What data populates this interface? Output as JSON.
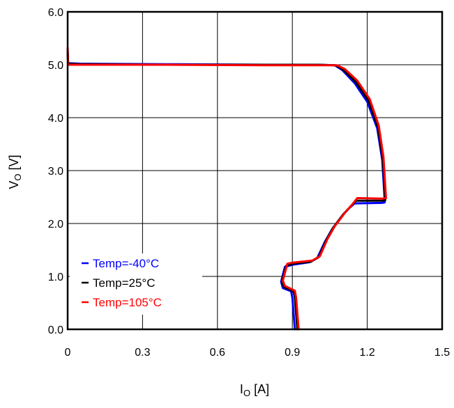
{
  "chart_data": {
    "type": "line",
    "xlabel": {
      "main": "I",
      "sub": "O",
      "unit": " [A]"
    },
    "ylabel": {
      "main": "V",
      "sub": "O",
      "unit": " [V]"
    },
    "xlim": [
      0,
      1.5
    ],
    "ylim": [
      0,
      6
    ],
    "x_ticks": [
      0,
      0.3,
      0.6,
      0.9,
      1.2,
      1.5
    ],
    "x_tick_labels": [
      "0",
      "0.3",
      "0.6",
      "0.9",
      "1.2",
      "1.5"
    ],
    "y_ticks": [
      0,
      1,
      2,
      3,
      4,
      5,
      6
    ],
    "y_tick_labels": [
      "0.0",
      "1.0",
      "2.0",
      "3.0",
      "4.0",
      "5.0",
      "6.0"
    ],
    "grid": true,
    "legend_position": "bottom-left",
    "series": [
      {
        "name": "Temp=-40°C",
        "color": "#0000ff",
        "points": [
          [
            0,
            5.25
          ],
          [
            0.002,
            5.03
          ],
          [
            0.05,
            5.02
          ],
          [
            0.4,
            5.01
          ],
          [
            0.8,
            5.0
          ],
          [
            1.0,
            5.0
          ],
          [
            1.07,
            4.99
          ],
          [
            1.1,
            4.9
          ],
          [
            1.15,
            4.65
          ],
          [
            1.2,
            4.3
          ],
          [
            1.24,
            3.8
          ],
          [
            1.26,
            3.2
          ],
          [
            1.268,
            2.6
          ],
          [
            1.27,
            2.4
          ],
          [
            1.26,
            2.39
          ],
          [
            1.15,
            2.38
          ],
          [
            1.13,
            2.3
          ],
          [
            1.1,
            2.15
          ],
          [
            1.06,
            1.9
          ],
          [
            1.03,
            1.65
          ],
          [
            1.0,
            1.35
          ],
          [
            0.97,
            1.27
          ],
          [
            0.9,
            1.22
          ],
          [
            0.87,
            1.18
          ],
          [
            0.855,
            0.9
          ],
          [
            0.862,
            0.78
          ],
          [
            0.895,
            0.72
          ],
          [
            0.9,
            0.6
          ],
          [
            0.905,
            0.3
          ],
          [
            0.91,
            0.0
          ]
        ]
      },
      {
        "name": "Temp=25°C",
        "color": "#000000",
        "points": [
          [
            0,
            5.28
          ],
          [
            0.002,
            5.02
          ],
          [
            0.05,
            5.01
          ],
          [
            0.4,
            5.0
          ],
          [
            0.8,
            5.0
          ],
          [
            1.0,
            5.0
          ],
          [
            1.075,
            4.99
          ],
          [
            1.105,
            4.9
          ],
          [
            1.155,
            4.67
          ],
          [
            1.205,
            4.32
          ],
          [
            1.243,
            3.82
          ],
          [
            1.262,
            3.22
          ],
          [
            1.27,
            2.62
          ],
          [
            1.272,
            2.44
          ],
          [
            1.26,
            2.43
          ],
          [
            1.155,
            2.43
          ],
          [
            1.135,
            2.33
          ],
          [
            1.105,
            2.18
          ],
          [
            1.065,
            1.93
          ],
          [
            1.035,
            1.68
          ],
          [
            1.005,
            1.36
          ],
          [
            0.975,
            1.28
          ],
          [
            0.9,
            1.24
          ],
          [
            0.875,
            1.2
          ],
          [
            0.858,
            0.91
          ],
          [
            0.866,
            0.8
          ],
          [
            0.905,
            0.72
          ],
          [
            0.91,
            0.6
          ],
          [
            0.915,
            0.3
          ],
          [
            0.92,
            0.0
          ]
        ]
      },
      {
        "name": "Temp=105°C",
        "color": "#ff0000",
        "points": [
          [
            0,
            5.32
          ],
          [
            0.002,
            5.0
          ],
          [
            0.05,
            5.0
          ],
          [
            0.4,
            5.0
          ],
          [
            0.8,
            4.99
          ],
          [
            1.0,
            4.99
          ],
          [
            1.08,
            4.99
          ],
          [
            1.11,
            4.92
          ],
          [
            1.16,
            4.7
          ],
          [
            1.21,
            4.35
          ],
          [
            1.246,
            3.85
          ],
          [
            1.265,
            3.25
          ],
          [
            1.273,
            2.65
          ],
          [
            1.275,
            2.48
          ],
          [
            1.26,
            2.47
          ],
          [
            1.16,
            2.48
          ],
          [
            1.14,
            2.36
          ],
          [
            1.11,
            2.2
          ],
          [
            1.07,
            1.95
          ],
          [
            1.04,
            1.7
          ],
          [
            1.01,
            1.38
          ],
          [
            0.98,
            1.3
          ],
          [
            0.9,
            1.26
          ],
          [
            0.88,
            1.24
          ],
          [
            0.862,
            0.92
          ],
          [
            0.87,
            0.82
          ],
          [
            0.91,
            0.73
          ],
          [
            0.915,
            0.6
          ],
          [
            0.92,
            0.3
          ],
          [
            0.925,
            0.0
          ]
        ]
      }
    ]
  }
}
